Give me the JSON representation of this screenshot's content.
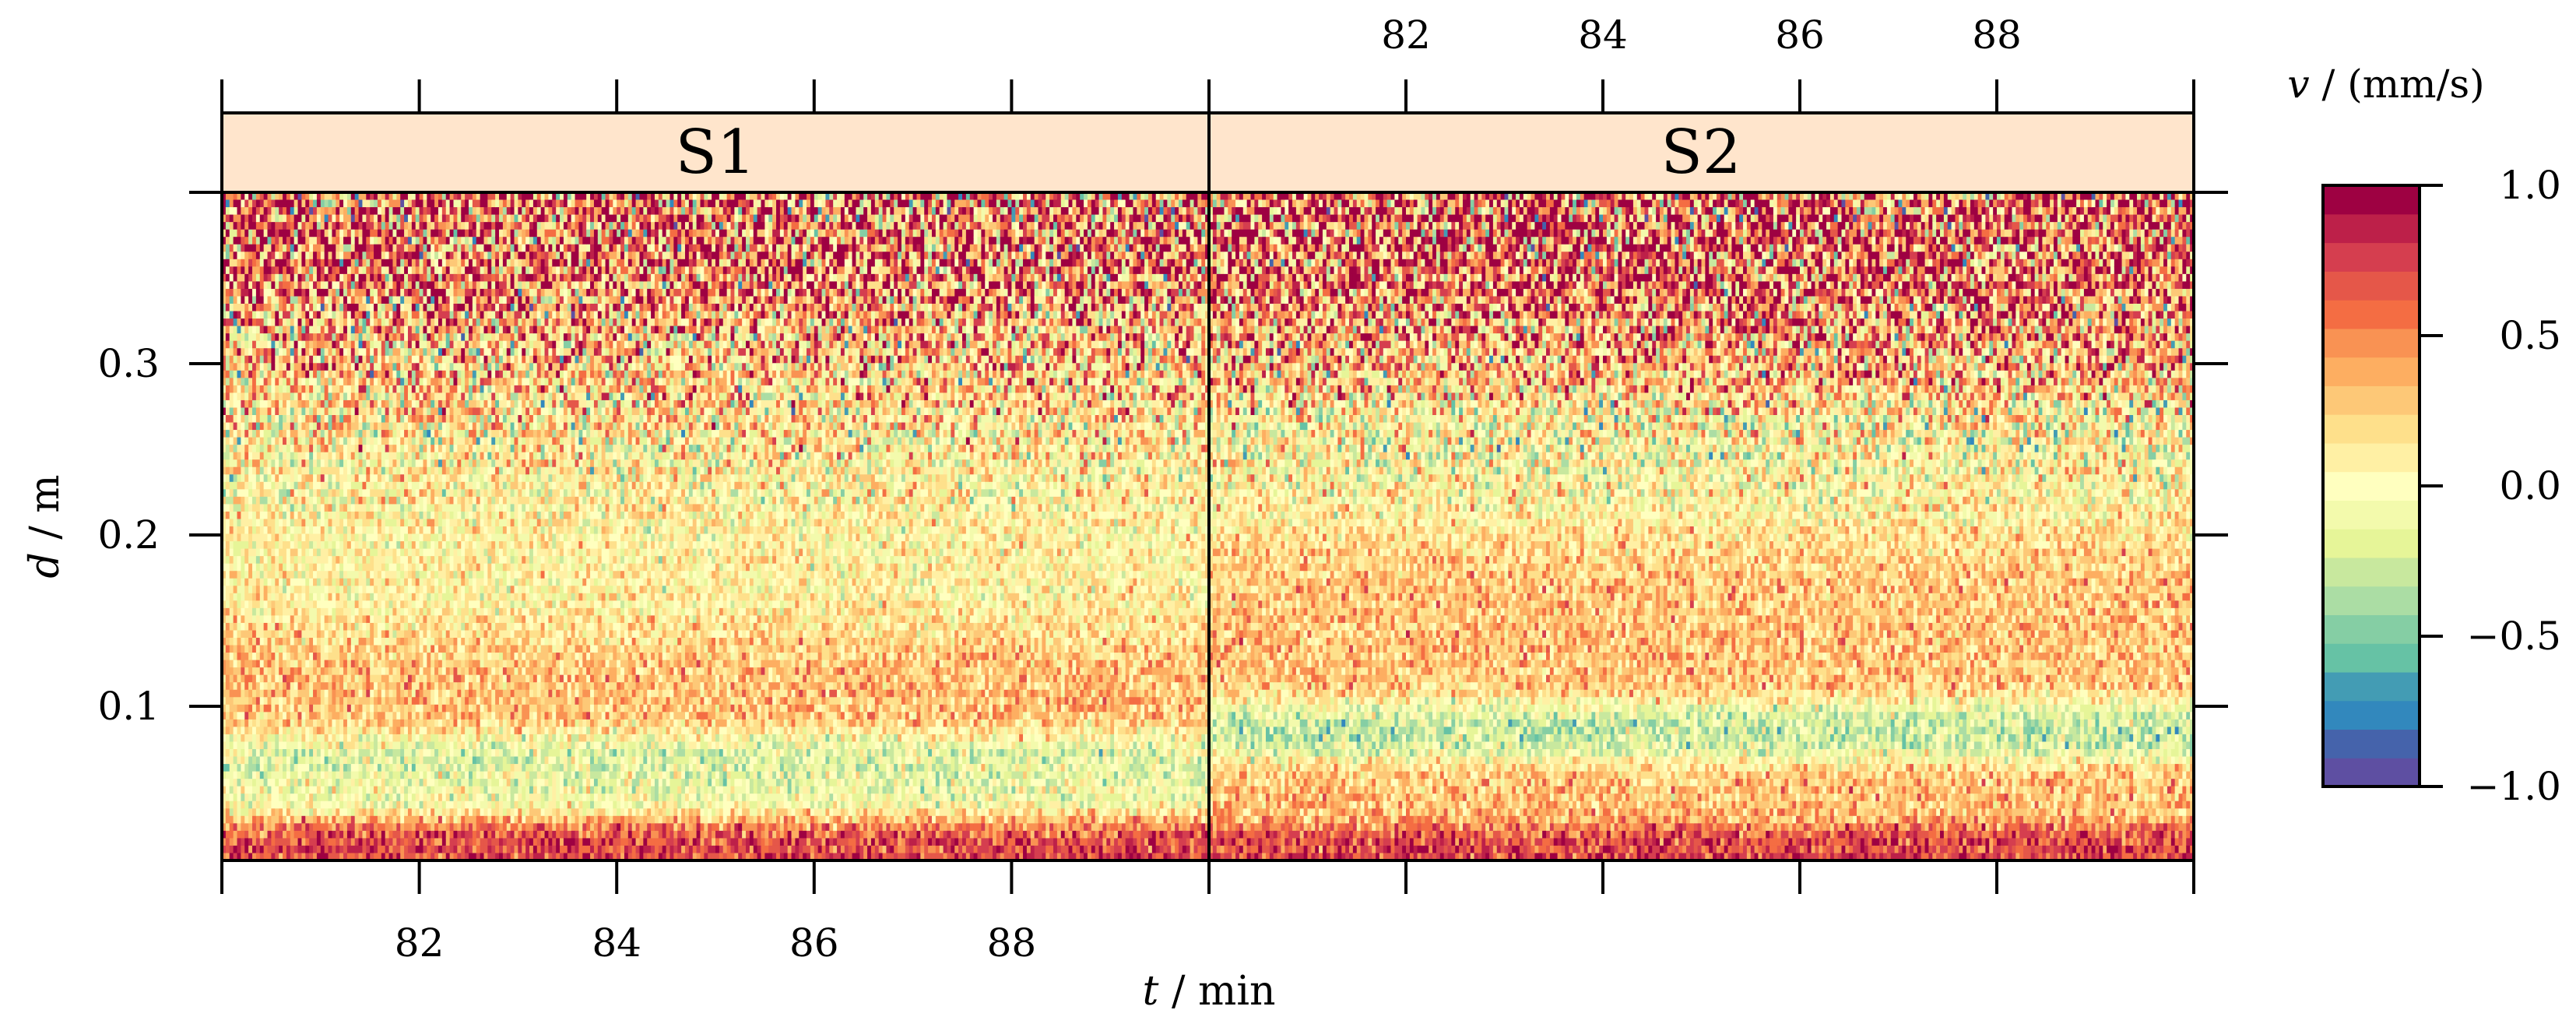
{
  "chart_data": {
    "type": "heatmap",
    "xlabel": {
      "var": "t",
      "unit": "min"
    },
    "ylabel": {
      "var": "d",
      "unit": "m"
    },
    "colorbar_label": {
      "var": "v",
      "unit": "(mm/s)"
    },
    "xlim": [
      80,
      90
    ],
    "ylim": [
      0.01,
      0.4
    ],
    "x_ticks": [
      80,
      82,
      84,
      86,
      88,
      90
    ],
    "x_tick_labels": [
      "82",
      "84",
      "86",
      "88"
    ],
    "y_ticks": [
      0.1,
      0.2,
      0.3,
      0.4
    ],
    "y_tick_labels": [
      "0.1",
      "0.2",
      "0.3"
    ],
    "colorbar": {
      "range": [
        -1.0,
        1.0
      ],
      "ticks": [
        -1.0,
        -0.5,
        0.0,
        0.5,
        1.0
      ],
      "tick_labels": [
        "−1.0",
        "−0.5",
        "0.0",
        "0.5",
        "1.0"
      ],
      "colors": [
        "#5e4fa2",
        "#4563ab",
        "#3288bd",
        "#439cb4",
        "#66c2a5",
        "#85cea4",
        "#abdda4",
        "#c8e89e",
        "#e6f598",
        "#f3faac",
        "#ffffbf",
        "#fff0a4",
        "#fee08b",
        "#fdc877",
        "#fdae61",
        "#f99253",
        "#f46d43",
        "#e55749",
        "#d53e4f",
        "#bd2049",
        "#9e0142"
      ]
    },
    "panels": [
      {
        "name": "S1",
        "description_bands": [
          {
            "d": [
              0.01,
              0.035
            ],
            "v": 0.75
          },
          {
            "d": [
              0.035,
              0.07
            ],
            "v": 0.2
          },
          {
            "d": [
              0.04,
              0.08
            ],
            "v": -0.45
          },
          {
            "d": [
              0.08,
              0.14
            ],
            "v": 0.35
          },
          {
            "d": [
              0.14,
              0.27
            ],
            "v": 0.05
          },
          {
            "d": [
              0.27,
              0.33
            ],
            "v": 0.25
          },
          {
            "d": [
              0.33,
              0.4
            ],
            "v": 0.55
          }
        ]
      },
      {
        "name": "S2",
        "description_bands": [
          {
            "d": [
              0.01,
              0.03
            ],
            "v": 0.75
          },
          {
            "d": [
              0.03,
              0.07
            ],
            "v": 0.3
          },
          {
            "d": [
              0.07,
              0.1
            ],
            "v": -0.4
          },
          {
            "d": [
              0.1,
              0.2
            ],
            "v": 0.3
          },
          {
            "d": [
              0.2,
              0.28
            ],
            "v": 0.0
          },
          {
            "d": [
              0.28,
              0.33
            ],
            "v": 0.35
          },
          {
            "d": [
              0.33,
              0.4
            ],
            "v": 0.6
          }
        ]
      }
    ],
    "grid": false,
    "legend_placement": "right"
  }
}
